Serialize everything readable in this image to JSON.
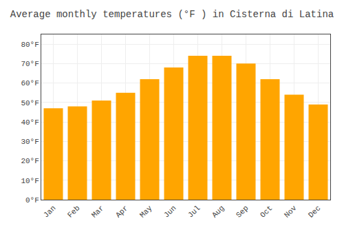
{
  "chart_data": {
    "type": "bar",
    "title": "Average monthly temperatures (°F ) in Cisterna di Latina",
    "categories": [
      "Jan",
      "Feb",
      "Mar",
      "Apr",
      "May",
      "Jun",
      "Jul",
      "Aug",
      "Sep",
      "Oct",
      "Nov",
      "Dec"
    ],
    "values": [
      47,
      48,
      51,
      55,
      62,
      68,
      74,
      74,
      70,
      62,
      54,
      49
    ],
    "color": "#FFA500",
    "ylim": [
      0,
      85
    ],
    "yticks": [
      {
        "value": 0,
        "label": "0°F"
      },
      {
        "value": 10,
        "label": "10°F"
      },
      {
        "value": 20,
        "label": "20°F"
      },
      {
        "value": 30,
        "label": "30°F"
      },
      {
        "value": 40,
        "label": "40°F"
      },
      {
        "value": 50,
        "label": "50°F"
      },
      {
        "value": 60,
        "label": "60°F"
      },
      {
        "value": 70,
        "label": "70°F"
      },
      {
        "value": 80,
        "label": "80°F"
      }
    ],
    "grid": true
  }
}
